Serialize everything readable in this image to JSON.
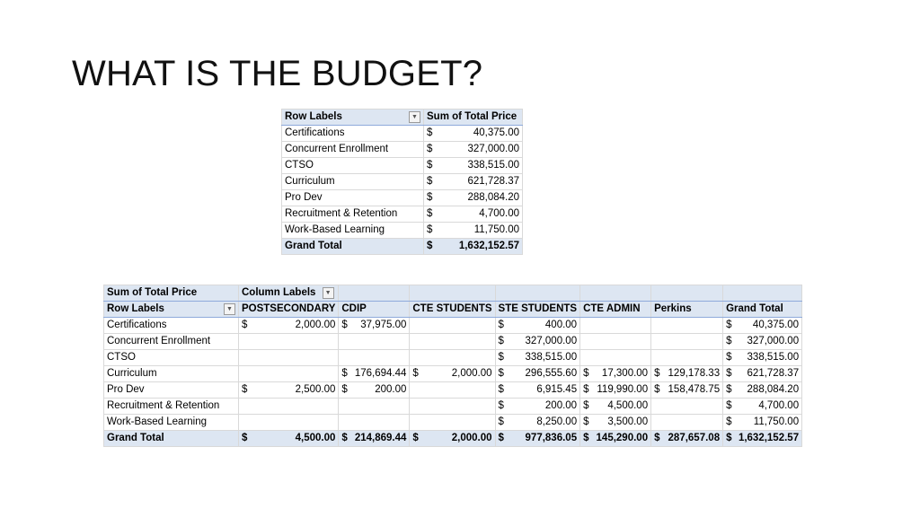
{
  "slide": {
    "title": "WHAT IS THE BUDGET?"
  },
  "summary_table": {
    "header": {
      "row_labels": "Row Labels",
      "value_col": "Sum of Total Price"
    },
    "rows": [
      {
        "label": "Certifications",
        "cur": "$",
        "amount": "40,375.00"
      },
      {
        "label": "Concurrent Enrollment",
        "cur": "$",
        "amount": "327,000.00"
      },
      {
        "label": "CTSO",
        "cur": "$",
        "amount": "338,515.00"
      },
      {
        "label": "Curriculum",
        "cur": "$",
        "amount": "621,728.37"
      },
      {
        "label": "Pro Dev",
        "cur": "$",
        "amount": "288,084.20"
      },
      {
        "label": "Recruitment & Retention",
        "cur": "$",
        "amount": "4,700.00"
      },
      {
        "label": "Work-Based Learning",
        "cur": "$",
        "amount": "11,750.00"
      }
    ],
    "total": {
      "label": "Grand Total",
      "cur": "$",
      "amount": "1,632,152.57"
    }
  },
  "detail_table": {
    "corner_label": "Sum of Total Price",
    "column_labels": "Column Labels",
    "row_labels": "Row Labels",
    "columns": [
      "POSTSECONDARY",
      "CDIP",
      "CTE STUDENTS",
      "STE STUDENTS",
      "CTE ADMIN",
      "Perkins",
      "Grand Total"
    ],
    "rows": [
      {
        "label": "Certifications",
        "cells": [
          {
            "cur": "$",
            "amount": "2,000.00"
          },
          {
            "cur": "$",
            "amount": "37,975.00"
          },
          {
            "cur": "",
            "amount": ""
          },
          {
            "cur": "$",
            "amount": "400.00"
          },
          {
            "cur": "",
            "amount": ""
          },
          {
            "cur": "",
            "amount": ""
          },
          {
            "cur": "$",
            "amount": "40,375.00"
          }
        ]
      },
      {
        "label": "Concurrent Enrollment",
        "cells": [
          {
            "cur": "",
            "amount": ""
          },
          {
            "cur": "",
            "amount": ""
          },
          {
            "cur": "",
            "amount": ""
          },
          {
            "cur": "$",
            "amount": "327,000.00"
          },
          {
            "cur": "",
            "amount": ""
          },
          {
            "cur": "",
            "amount": ""
          },
          {
            "cur": "$",
            "amount": "327,000.00"
          }
        ]
      },
      {
        "label": "CTSO",
        "cells": [
          {
            "cur": "",
            "amount": ""
          },
          {
            "cur": "",
            "amount": ""
          },
          {
            "cur": "",
            "amount": ""
          },
          {
            "cur": "$",
            "amount": "338,515.00"
          },
          {
            "cur": "",
            "amount": ""
          },
          {
            "cur": "",
            "amount": ""
          },
          {
            "cur": "$",
            "amount": "338,515.00"
          }
        ]
      },
      {
        "label": "Curriculum",
        "cells": [
          {
            "cur": "",
            "amount": ""
          },
          {
            "cur": "$",
            "amount": "176,694.44"
          },
          {
            "cur": "$",
            "amount": "2,000.00"
          },
          {
            "cur": "$",
            "amount": "296,555.60"
          },
          {
            "cur": "$",
            "amount": "17,300.00"
          },
          {
            "cur": "$",
            "amount": "129,178.33"
          },
          {
            "cur": "$",
            "amount": "621,728.37"
          }
        ]
      },
      {
        "label": "Pro Dev",
        "cells": [
          {
            "cur": "$",
            "amount": "2,500.00"
          },
          {
            "cur": "$",
            "amount": "200.00"
          },
          {
            "cur": "",
            "amount": ""
          },
          {
            "cur": "$",
            "amount": "6,915.45"
          },
          {
            "cur": "$",
            "amount": "119,990.00"
          },
          {
            "cur": "$",
            "amount": "158,478.75"
          },
          {
            "cur": "$",
            "amount": "288,084.20"
          }
        ]
      },
      {
        "label": "Recruitment & Retention",
        "cells": [
          {
            "cur": "",
            "amount": ""
          },
          {
            "cur": "",
            "amount": ""
          },
          {
            "cur": "",
            "amount": ""
          },
          {
            "cur": "$",
            "amount": "200.00"
          },
          {
            "cur": "$",
            "amount": "4,500.00"
          },
          {
            "cur": "",
            "amount": ""
          },
          {
            "cur": "$",
            "amount": "4,700.00"
          }
        ]
      },
      {
        "label": "Work-Based Learning",
        "cells": [
          {
            "cur": "",
            "amount": ""
          },
          {
            "cur": "",
            "amount": ""
          },
          {
            "cur": "",
            "amount": ""
          },
          {
            "cur": "$",
            "amount": "8,250.00"
          },
          {
            "cur": "$",
            "amount": "3,500.00"
          },
          {
            "cur": "",
            "amount": ""
          },
          {
            "cur": "$",
            "amount": "11,750.00"
          }
        ]
      }
    ],
    "total": {
      "label": "Grand Total",
      "cells": [
        {
          "cur": "$",
          "amount": "4,500.00"
        },
        {
          "cur": "$",
          "amount": "214,869.44"
        },
        {
          "cur": "$",
          "amount": "2,000.00"
        },
        {
          "cur": "$",
          "amount": "977,836.05"
        },
        {
          "cur": "$",
          "amount": "145,290.00"
        },
        {
          "cur": "$",
          "amount": "287,657.08"
        },
        {
          "cur": "$",
          "amount": "1,632,152.57"
        }
      ]
    }
  },
  "icons": {
    "filter_dropdown": "filter-dropdown-icon"
  },
  "colors": {
    "header_fill": "#dde6f2",
    "header_rule": "#8eaadb",
    "gridline": "#d9d9d9"
  }
}
